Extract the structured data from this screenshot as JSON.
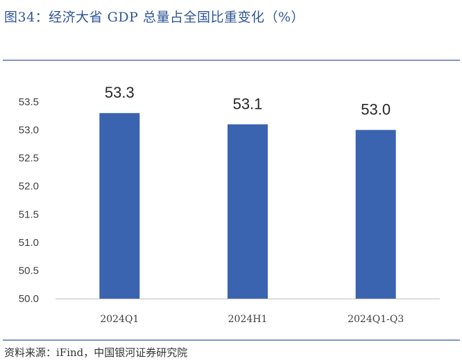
{
  "title": "图34：经济大省 GDP 总量占全国比重变化（%）",
  "source": "资料来源：iFind，中国银河证券研究院",
  "colors": {
    "bar": "#3a63b0",
    "title": "#2f5597",
    "rule": "#8095c2",
    "axis": "#bfbfbf"
  },
  "chart_data": {
    "type": "bar",
    "categories": [
      "2024Q1",
      "2024H1",
      "2024Q1-Q3"
    ],
    "series": [
      {
        "values": [
          53.3,
          53.1,
          53.0
        ]
      }
    ],
    "data_labels": [
      "53.3",
      "53.1",
      "53.0"
    ],
    "yticks": [
      "50.0",
      "50.5",
      "51.0",
      "51.5",
      "52.0",
      "52.5",
      "53.0",
      "53.5"
    ],
    "ylim": [
      50.0,
      53.5
    ],
    "grid": false,
    "xlabel": "",
    "ylabel": ""
  }
}
